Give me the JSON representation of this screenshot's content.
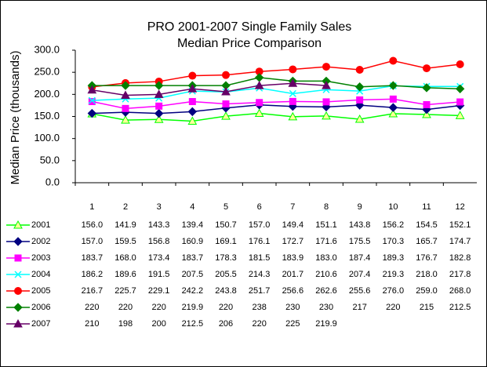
{
  "chart_data": {
    "type": "line",
    "title": "PRO 2001-2007 Single Family Sales",
    "subtitle": "Median Price Comparison",
    "y_label": "Median Price (thousands)",
    "categories": [
      "1",
      "2",
      "3",
      "4",
      "5",
      "6",
      "7",
      "8",
      "9",
      "10",
      "11",
      "12"
    ],
    "ylim": [
      0,
      300
    ],
    "yticks": [
      {
        "value": 0,
        "label": "0.0"
      },
      {
        "value": 50,
        "label": "50.0"
      },
      {
        "value": 100,
        "label": "100.0"
      },
      {
        "value": 150,
        "label": "150.0"
      },
      {
        "value": 200,
        "label": "200.0"
      },
      {
        "value": 250,
        "label": "250.0"
      },
      {
        "value": 300,
        "label": "300.0"
      }
    ],
    "grid": false,
    "series": [
      {
        "name": "2001",
        "color": "#00ff00",
        "marker": "triangle",
        "marker_fill": "#ffff99",
        "values": [
          156.0,
          141.9,
          143.3,
          139.4,
          150.7,
          157.0,
          149.4,
          151.1,
          143.8,
          156.2,
          154.5,
          152.1
        ],
        "value_labels": [
          "156.0",
          "141.9",
          "143.3",
          "139.4",
          "150.7",
          "157.0",
          "149.4",
          "151.1",
          "143.8",
          "156.2",
          "154.5",
          "152.1"
        ]
      },
      {
        "name": "2002",
        "color": "#000080",
        "marker": "diamond",
        "marker_fill": "#000080",
        "values": [
          157.0,
          159.5,
          156.8,
          160.9,
          169.1,
          176.1,
          172.7,
          171.6,
          175.5,
          170.3,
          165.7,
          174.7
        ],
        "value_labels": [
          "157.0",
          "159.5",
          "156.8",
          "160.9",
          "169.1",
          "176.1",
          "172.7",
          "171.6",
          "175.5",
          "170.3",
          "165.7",
          "174.7"
        ]
      },
      {
        "name": "2003",
        "color": "#ff00ff",
        "marker": "square",
        "marker_fill": "#ff00ff",
        "values": [
          183.7,
          168.0,
          173.4,
          183.7,
          178.3,
          181.5,
          183.9,
          183.0,
          187.4,
          189.3,
          176.7,
          182.8
        ],
        "value_labels": [
          "183.7",
          "168.0",
          "173.4",
          "183.7",
          "178.3",
          "181.5",
          "183.9",
          "183.0",
          "187.4",
          "189.3",
          "176.7",
          "182.8"
        ]
      },
      {
        "name": "2004",
        "color": "#00ffff",
        "marker": "x",
        "marker_fill": "#00ffff",
        "values": [
          186.2,
          189.6,
          191.5,
          207.5,
          205.5,
          214.3,
          201.7,
          210.6,
          207.4,
          219.3,
          218.0,
          217.8
        ],
        "value_labels": [
          "186.2",
          "189.6",
          "191.5",
          "207.5",
          "205.5",
          "214.3",
          "201.7",
          "210.6",
          "207.4",
          "219.3",
          "218.0",
          "217.8"
        ]
      },
      {
        "name": "2005",
        "color": "#ff0000",
        "marker": "circle",
        "marker_fill": "#ff0000",
        "values": [
          216.7,
          225.7,
          229.1,
          242.2,
          243.8,
          251.7,
          256.6,
          262.6,
          255.6,
          276.0,
          259.0,
          268.0
        ],
        "value_labels": [
          "216.7",
          "225.7",
          "229.1",
          "242.2",
          "243.8",
          "251.7",
          "256.6",
          "262.6",
          "255.6",
          "276.0",
          "259.0",
          "268.0"
        ]
      },
      {
        "name": "2006",
        "color": "#008000",
        "marker": "diamond",
        "marker_fill": "#008000",
        "values": [
          220,
          220,
          220,
          219.9,
          220,
          238,
          230,
          230,
          217,
          220,
          215,
          212.5
        ]
      },
      {
        "name": "2007",
        "color": "#660066",
        "marker": "triangle",
        "marker_fill": "#660066",
        "values": [
          210,
          198,
          200,
          212.5,
          206,
          220,
          225,
          219.9,
          null,
          null,
          null,
          null
        ]
      }
    ]
  }
}
